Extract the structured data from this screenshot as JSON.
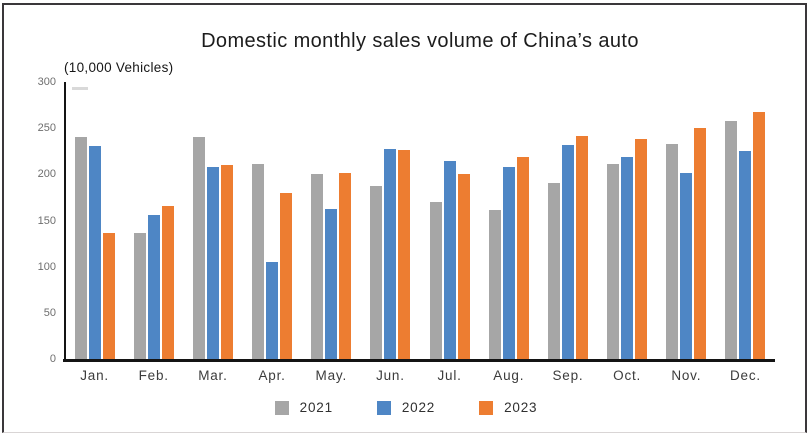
{
  "title": "Domestic monthly sales volume of China’s auto",
  "unit_label": "(10,000 Vehicles)",
  "chart_data": {
    "type": "bar",
    "title": "Domestic monthly sales volume of China’s auto",
    "xlabel": "",
    "ylabel": "(10,000 Vehicles)",
    "ylim": [
      0,
      300
    ],
    "yticks": [
      0,
      50,
      100,
      150,
      200,
      250,
      300
    ],
    "grid": false,
    "legend_position": "bottom",
    "categories": [
      "Jan.",
      "Feb.",
      "Mar.",
      "Apr.",
      "May.",
      "Jun.",
      "Jul.",
      "Aug.",
      "Sep.",
      "Oct.",
      "Nov.",
      "Dec."
    ],
    "series": [
      {
        "name": "2021",
        "color": "#A6A6A6",
        "values": [
          240,
          136,
          240,
          211,
          200,
          187,
          170,
          161,
          191,
          211,
          233,
          258
        ]
      },
      {
        "name": "2022",
        "color": "#4E86C5",
        "values": [
          231,
          156,
          208,
          105,
          162,
          227,
          214,
          208,
          232,
          219,
          201,
          225
        ]
      },
      {
        "name": "2023",
        "color": "#ED7D31",
        "values": [
          136,
          166,
          210,
          180,
          201,
          226,
          200,
          219,
          242,
          238,
          250,
          267
        ]
      }
    ]
  },
  "colors": {
    "axis": "#141414",
    "frame": "#3a373a",
    "tick_label": "#6e6e6e"
  }
}
